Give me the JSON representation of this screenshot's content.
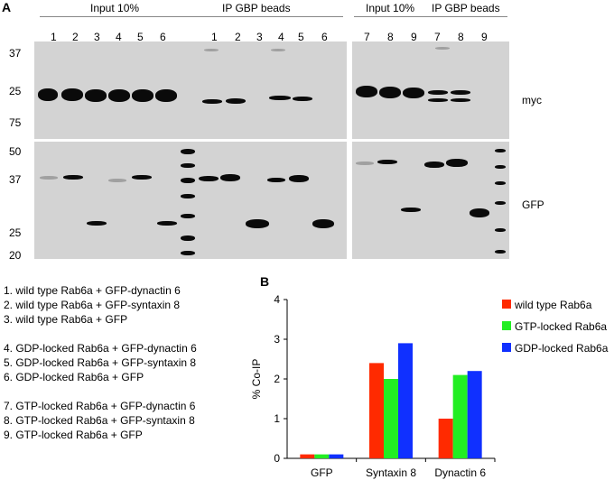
{
  "panelA": {
    "letter": "A",
    "groups": [
      "Input 10%",
      "IP GBP beads",
      "Input 10%",
      "IP GBP beads"
    ],
    "lanes_left": [
      "1",
      "2",
      "3",
      "4",
      "5",
      "6",
      "1",
      "2",
      "3",
      "4",
      "5",
      "6"
    ],
    "lanes_right": [
      "7",
      "8",
      "9",
      "7",
      "8",
      "9"
    ],
    "mw_top": [
      "37",
      "25",
      "75"
    ],
    "mw_bottom": [
      "50",
      "37",
      "25",
      "20"
    ],
    "blot_labels": [
      "myc",
      "GFP"
    ]
  },
  "conditions": [
    "1. wild type Rab6a + GFP-dynactin 6",
    "2. wild type Rab6a + GFP-syntaxin 8",
    "3. wild type Rab6a + GFP",
    "4. GDP-locked Rab6a + GFP-dynactin 6",
    "5. GDP-locked Rab6a + GFP-syntaxin 8",
    "6. GDP-locked Rab6a + GFP",
    "7. GTP-locked Rab6a + GFP-dynactin 6",
    "8. GTP-locked Rab6a + GFP-syntaxin 8",
    "9. GTP-locked Rab6a + GFP"
  ],
  "panelB": {
    "letter": "B"
  },
  "chart_data": {
    "type": "bar",
    "categories": [
      "GFP",
      "Syntaxin 8",
      "Dynactin 6"
    ],
    "series": [
      {
        "name": "wild type Rab6a",
        "color": "#ff2a00",
        "values": [
          0.1,
          2.4,
          1.0
        ]
      },
      {
        "name": "GTP-locked Rab6a",
        "color": "#22ee22",
        "values": [
          0.1,
          2.0,
          2.1
        ]
      },
      {
        "name": "GDP-locked Rab6a",
        "color": "#1030ff",
        "values": [
          0.1,
          2.9,
          2.2
        ]
      }
    ],
    "ylabel": "% Co-IP",
    "xlabel": "",
    "ylim": [
      0,
      4
    ],
    "yticks": [
      "0",
      "1",
      "2",
      "3",
      "4"
    ],
    "legend": "right",
    "grid": false
  }
}
